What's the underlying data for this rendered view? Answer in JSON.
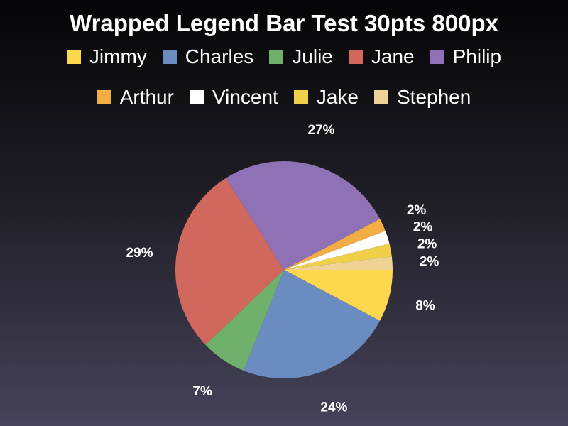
{
  "chart_data": {
    "type": "pie",
    "title": "Wrapped Legend Bar Test 30pts 800px",
    "categories": [
      "Jimmy",
      "Charles",
      "Julie",
      "Jane",
      "Philip",
      "Arthur",
      "Vincent",
      "Jake",
      "Stephen"
    ],
    "values": [
      8,
      24,
      7,
      29,
      27,
      2,
      2,
      2,
      2
    ],
    "value_labels": [
      "8%",
      "24%",
      "7%",
      "29%",
      "27%",
      "2%",
      "2%",
      "2%",
      "2%"
    ],
    "colors": [
      "#fdd84e",
      "#6b8cc0",
      "#6fb06c",
      "#d1685d",
      "#8e72b5",
      "#f2ad45",
      "#ffffff",
      "#f0d04a",
      "#efd396"
    ],
    "legend_placement": "top",
    "grid": false
  }
}
